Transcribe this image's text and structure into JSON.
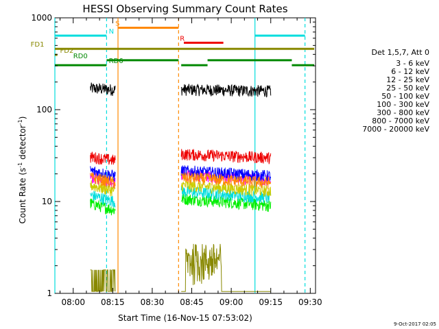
{
  "chart_data": {
    "type": "line",
    "title": "HESSI Observing Summary Count Rates",
    "xlabel": "Start Time (16-Nov-15 07:53:02)",
    "ylabel_main": "Count Rate (s",
    "ylabel_sup1": "-1",
    "ylabel_mid": " detector",
    "ylabel_sup2": "-1",
    "ylabel_end": ")",
    "y_scale": "log",
    "ylim": [
      1,
      1000
    ],
    "xlim": [
      "07:53:02",
      "09:32:00"
    ],
    "x_ticks": [
      "08:00",
      "08:15",
      "08:30",
      "08:45",
      "09:00",
      "09:15",
      "09:30"
    ],
    "y_ticks": [
      "1",
      "10",
      "100",
      "1000"
    ],
    "legend_header": "Det 1,5,7, Att 0",
    "legend_position": "right",
    "date_stamp": "9-Oct-2017 02:05",
    "series": [
      {
        "name": "3 - 6 keV",
        "color": "#000000",
        "level1": 165,
        "level2": 160,
        "decay": 0.05
      },
      {
        "name": "6 - 12 keV",
        "color": "#ff00ff",
        "level1": 16,
        "level2": 17,
        "decay": 0.2
      },
      {
        "name": "12 - 25 keV",
        "color": "#00ee00",
        "level1": 8,
        "level2": 9,
        "decay": 0.25
      },
      {
        "name": "25 - 50 keV",
        "color": "#00dddd",
        "level1": 10,
        "level2": 11,
        "decay": 0.22
      },
      {
        "name": "50 - 100 keV",
        "color": "#cccc00",
        "level1": 13,
        "level2": 13,
        "decay": 0.2
      },
      {
        "name": "100 - 300 keV",
        "color": "#ee0000",
        "level1": 28,
        "level2": 30,
        "decay": 0.12
      },
      {
        "name": "300 - 800 keV",
        "color": "#0000ff",
        "level1": 19,
        "level2": 19,
        "decay": 0.18
      },
      {
        "name": "800 - 7000 keV",
        "color": "#ff8800",
        "level1": 16,
        "level2": 16,
        "decay": 0.18
      },
      {
        "name": "7000 - 20000 keV",
        "color": "#888800",
        "level1": 1.4,
        "level2": 2.5,
        "decay": 0.0
      }
    ],
    "data_windows": [
      [
        "08:06:30",
        "08:16:00"
      ],
      [
        "08:41:00",
        "09:15:00"
      ]
    ],
    "vertical_markers": [
      {
        "time": "07:53:02",
        "color": "#00dddd",
        "style": "solid"
      },
      {
        "time": "08:12:40",
        "color": "#00dddd",
        "style": "dashed"
      },
      {
        "time": "08:17:00",
        "color": "#ff8800",
        "style": "solid"
      },
      {
        "time": "08:40:00",
        "color": "#ff8800",
        "style": "dashed"
      },
      {
        "time": "09:09:00",
        "color": "#00dddd",
        "style": "solid"
      },
      {
        "time": "09:28:00",
        "color": "#00dddd",
        "style": "dashed"
      }
    ],
    "flag_bars": [
      {
        "label": "N",
        "color": "#00dddd",
        "y_value": 640,
        "segments": [
          [
            "07:53:02",
            "08:12:40"
          ],
          [
            "09:09:00",
            "09:28:00"
          ]
        ],
        "label_at": "08:13:30"
      },
      {
        "label": "S",
        "color": "#ff8800",
        "y_value": 780,
        "segments": [
          [
            "08:17:00",
            "08:40:00"
          ]
        ],
        "label_at": "08:16:00"
      },
      {
        "label": "R",
        "color": "#ee0000",
        "y_value": 535,
        "segments": [
          [
            "08:42:00",
            "08:57:00"
          ]
        ],
        "label_at": "08:40:30"
      },
      {
        "label": "FD1",
        "color": "#888800",
        "y_value": 460,
        "segments": [
          [
            "07:53:02",
            "09:31:30"
          ]
        ],
        "label_at": "07:49:00"
      },
      {
        "label": "FD2",
        "color": "#888800",
        "y_value": 395,
        "segments": [
          [
            "07:53:02",
            "07:54:00"
          ]
        ],
        "label_at": "07:55:00"
      },
      {
        "label": "RD0",
        "color": "#008800",
        "y_value": 345,
        "segments": [
          [
            "08:12:40",
            "08:40:00"
          ],
          [
            "08:51:00",
            "09:23:00"
          ]
        ],
        "label_at": "08:00:00"
      },
      {
        "label": "RD6",
        "color": "#008800",
        "y_value": 305,
        "segments": [
          [
            "07:53:02",
            "08:12:40"
          ],
          [
            "08:41:00",
            "08:51:00"
          ],
          [
            "09:23:00",
            "09:31:30"
          ]
        ],
        "label_at": "08:13:30"
      }
    ]
  }
}
